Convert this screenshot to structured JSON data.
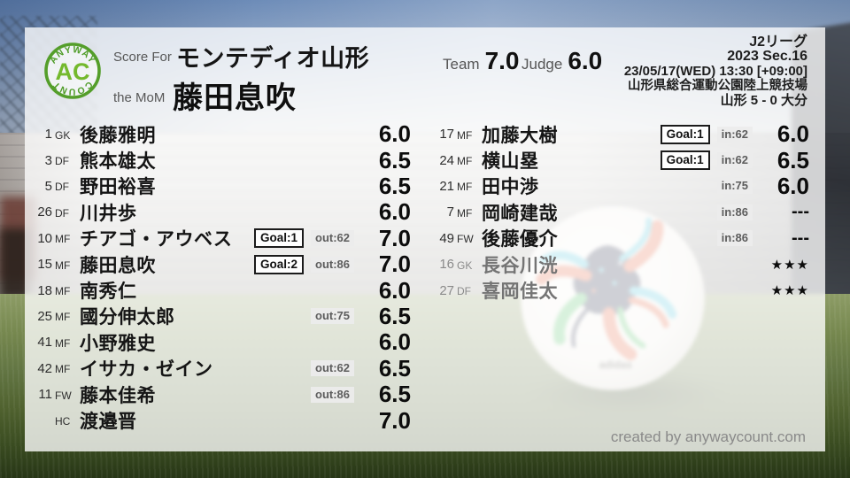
{
  "logo": {
    "arc_top": "ANYWAY",
    "monogram": "AC",
    "arc_bottom": "COUNT"
  },
  "header": {
    "score_for_label": "Score For",
    "team_name": "モンテディオ山形",
    "mom_label": "the MoM",
    "mom_name": "藤田息吹",
    "team_label": "Team",
    "team_score": "7.0",
    "judge_label": "Judge",
    "judge_score": "6.0"
  },
  "match_info": {
    "league": "J2リーグ",
    "season": "2023 Sec.16",
    "datetime": "23/05/17(WED) 13:30 [+09:00]",
    "venue": "山形県総合運動公園陸上競技場",
    "scoreline": "山形 5 - 0 大分"
  },
  "players_left": [
    {
      "number": "1",
      "position": "GK",
      "name": "後藤雅明",
      "goal": "",
      "sub": "",
      "rating": "6.0",
      "unused": false
    },
    {
      "number": "3",
      "position": "DF",
      "name": "熊本雄太",
      "goal": "",
      "sub": "",
      "rating": "6.5",
      "unused": false
    },
    {
      "number": "5",
      "position": "DF",
      "name": "野田裕喜",
      "goal": "",
      "sub": "",
      "rating": "6.5",
      "unused": false
    },
    {
      "number": "26",
      "position": "DF",
      "name": "川井歩",
      "goal": "",
      "sub": "",
      "rating": "6.0",
      "unused": false
    },
    {
      "number": "10",
      "position": "MF",
      "name": "チアゴ・アウベス",
      "goal": "Goal:1",
      "sub": "out:62",
      "rating": "7.0",
      "unused": false
    },
    {
      "number": "15",
      "position": "MF",
      "name": "藤田息吹",
      "goal": "Goal:2",
      "sub": "out:86",
      "rating": "7.0",
      "unused": false
    },
    {
      "number": "18",
      "position": "MF",
      "name": "南秀仁",
      "goal": "",
      "sub": "",
      "rating": "6.0",
      "unused": false
    },
    {
      "number": "25",
      "position": "MF",
      "name": "國分伸太郎",
      "goal": "",
      "sub": "out:75",
      "rating": "6.5",
      "unused": false
    },
    {
      "number": "41",
      "position": "MF",
      "name": "小野雅史",
      "goal": "",
      "sub": "",
      "rating": "6.0",
      "unused": false
    },
    {
      "number": "42",
      "position": "MF",
      "name": "イサカ・ゼイン",
      "goal": "",
      "sub": "out:62",
      "rating": "6.5",
      "unused": false
    },
    {
      "number": "11",
      "position": "FW",
      "name": "藤本佳希",
      "goal": "",
      "sub": "out:86",
      "rating": "6.5",
      "unused": false
    },
    {
      "number": "",
      "position": "HC",
      "name": "渡邉晋",
      "goal": "",
      "sub": "",
      "rating": "7.0",
      "unused": false
    }
  ],
  "players_right": [
    {
      "number": "17",
      "position": "MF",
      "name": "加藤大樹",
      "goal": "Goal:1",
      "sub": "in:62",
      "rating": "6.0",
      "unused": false
    },
    {
      "number": "24",
      "position": "MF",
      "name": "横山塁",
      "goal": "Goal:1",
      "sub": "in:62",
      "rating": "6.5",
      "unused": false
    },
    {
      "number": "21",
      "position": "MF",
      "name": "田中渉",
      "goal": "",
      "sub": "in:75",
      "rating": "6.0",
      "unused": false
    },
    {
      "number": "7",
      "position": "MF",
      "name": "岡崎建哉",
      "goal": "",
      "sub": "in:86",
      "rating": "---",
      "unused": false
    },
    {
      "number": "49",
      "position": "FW",
      "name": "後藤優介",
      "goal": "",
      "sub": "in:86",
      "rating": "---",
      "unused": false
    },
    {
      "number": "16",
      "position": "GK",
      "name": "長谷川洸",
      "goal": "",
      "sub": "",
      "rating": "★★★",
      "unused": true
    },
    {
      "number": "27",
      "position": "DF",
      "name": "喜岡佳太",
      "goal": "",
      "sub": "",
      "rating": "★★★",
      "unused": true
    }
  ],
  "footer": {
    "credit": "created by anywaycount.com"
  },
  "colors": {
    "accent_green": "#5aa12e",
    "logo_monogram_green": "#74b92d",
    "label_gray": "#575757",
    "text_black": "#111111",
    "unused_gray": "#747474",
    "chip_bg": "#ececec",
    "chip_text": "#5d5d5d",
    "overlay_white": "rgba(255,255,255,0.78)"
  }
}
